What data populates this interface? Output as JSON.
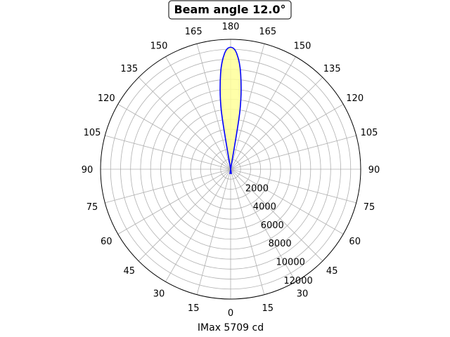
{
  "chart_data": {
    "type": "polar-line",
    "title": "Beam angle 12.0°",
    "xlabel": "IMax 5709 cd",
    "angle_tick_labels": [
      "180",
      "165",
      "150",
      "135",
      "120",
      "105",
      "90",
      "75",
      "60",
      "45",
      "30",
      "15",
      "0",
      "15",
      "30",
      "45",
      "60",
      "75",
      "90",
      "105",
      "120",
      "135",
      "150",
      "165"
    ],
    "radial_tick_labels": [
      "2000",
      "4000",
      "6000",
      "8000",
      "10000",
      "12000"
    ],
    "radial_range": [
      0,
      13000
    ],
    "grid": true,
    "series": [
      {
        "color": "#0000ff",
        "fill_color": "#ffff99",
        "angles_deg": [
          -12,
          -9,
          -6,
          -3,
          0,
          3,
          6,
          9,
          12
        ],
        "values": [
          0,
          6000,
          9600,
          11600,
          12200,
          11600,
          9600,
          6000,
          0
        ]
      }
    ]
  }
}
